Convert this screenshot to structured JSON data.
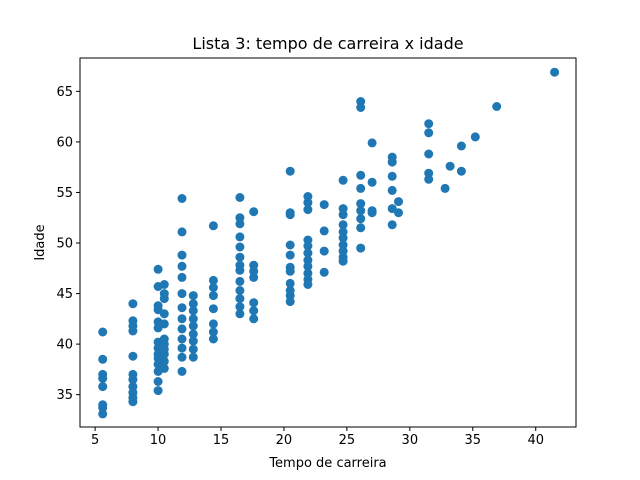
{
  "chart_data": {
    "type": "scatter",
    "title": "Lista 3: tempo de carreira x idade",
    "xlabel": "Tempo de carreira",
    "ylabel": "Idade",
    "xlim": [
      3.8,
      43.2
    ],
    "ylim": [
      31.8,
      68.3
    ],
    "xticks": [
      5,
      10,
      15,
      20,
      25,
      30,
      35,
      40
    ],
    "yticks": [
      35,
      40,
      45,
      50,
      55,
      60,
      65
    ],
    "grid": false,
    "color": "#1f77b4",
    "series": [
      {
        "points": [
          [
            5.6,
            41.2
          ],
          [
            5.6,
            38.5
          ],
          [
            5.6,
            37.0
          ],
          [
            5.6,
            36.6
          ],
          [
            5.6,
            35.8
          ],
          [
            5.6,
            34.0
          ],
          [
            5.6,
            33.7
          ],
          [
            5.6,
            33.1
          ],
          [
            8.0,
            44.0
          ],
          [
            8.0,
            42.3
          ],
          [
            8.0,
            41.8
          ],
          [
            8.0,
            41.3
          ],
          [
            8.0,
            38.8
          ],
          [
            8.0,
            37.0
          ],
          [
            8.0,
            36.5
          ],
          [
            8.0,
            35.8
          ],
          [
            8.0,
            35.2
          ],
          [
            8.0,
            34.7
          ],
          [
            8.0,
            34.3
          ],
          [
            10.0,
            47.4
          ],
          [
            10.0,
            45.7
          ],
          [
            10.0,
            43.8
          ],
          [
            10.0,
            43.4
          ],
          [
            10.0,
            42.2
          ],
          [
            10.0,
            41.6
          ],
          [
            10.0,
            40.2
          ],
          [
            10.0,
            39.6
          ],
          [
            10.0,
            39.0
          ],
          [
            10.0,
            38.6
          ],
          [
            10.0,
            38.0
          ],
          [
            10.0,
            37.3
          ],
          [
            10.0,
            36.3
          ],
          [
            10.0,
            35.4
          ],
          [
            10.5,
            45.9
          ],
          [
            10.5,
            45.0
          ],
          [
            10.5,
            44.5
          ],
          [
            10.5,
            43.0
          ],
          [
            10.5,
            42.0
          ],
          [
            10.5,
            40.5
          ],
          [
            10.5,
            40.0
          ],
          [
            10.5,
            39.5
          ],
          [
            10.5,
            39.0
          ],
          [
            10.5,
            38.3
          ],
          [
            10.5,
            37.6
          ],
          [
            11.9,
            54.4
          ],
          [
            11.9,
            51.1
          ],
          [
            11.9,
            48.8
          ],
          [
            11.9,
            47.7
          ],
          [
            11.9,
            46.6
          ],
          [
            11.9,
            45.0
          ],
          [
            11.9,
            43.6
          ],
          [
            11.9,
            42.5
          ],
          [
            11.9,
            41.5
          ],
          [
            11.9,
            40.5
          ],
          [
            11.9,
            39.6
          ],
          [
            11.9,
            38.7
          ],
          [
            11.9,
            37.3
          ],
          [
            12.8,
            44.8
          ],
          [
            12.8,
            44.0
          ],
          [
            12.8,
            43.3
          ],
          [
            12.8,
            42.5
          ],
          [
            12.8,
            41.8
          ],
          [
            12.8,
            41.0
          ],
          [
            12.8,
            40.3
          ],
          [
            12.8,
            39.5
          ],
          [
            12.8,
            38.7
          ],
          [
            14.4,
            51.7
          ],
          [
            14.4,
            46.3
          ],
          [
            14.4,
            45.6
          ],
          [
            14.4,
            44.8
          ],
          [
            14.4,
            43.5
          ],
          [
            14.4,
            42.0
          ],
          [
            14.4,
            41.2
          ],
          [
            14.4,
            40.5
          ],
          [
            16.5,
            54.5
          ],
          [
            16.5,
            52.5
          ],
          [
            16.5,
            51.9
          ],
          [
            16.5,
            50.6
          ],
          [
            16.5,
            49.6
          ],
          [
            16.5,
            48.6
          ],
          [
            16.5,
            47.8
          ],
          [
            16.5,
            47.3
          ],
          [
            16.5,
            46.2
          ],
          [
            16.5,
            45.3
          ],
          [
            16.5,
            44.5
          ],
          [
            16.5,
            43.7
          ],
          [
            16.5,
            43.0
          ],
          [
            17.6,
            53.1
          ],
          [
            17.6,
            47.8
          ],
          [
            17.6,
            47.2
          ],
          [
            17.6,
            46.6
          ],
          [
            17.6,
            44.1
          ],
          [
            17.6,
            43.3
          ],
          [
            17.6,
            42.5
          ],
          [
            20.5,
            57.1
          ],
          [
            20.5,
            53.0
          ],
          [
            20.5,
            52.8
          ],
          [
            20.5,
            49.8
          ],
          [
            20.5,
            48.8
          ],
          [
            20.5,
            47.6
          ],
          [
            20.5,
            47.2
          ],
          [
            20.5,
            46.0
          ],
          [
            20.5,
            45.3
          ],
          [
            20.5,
            44.8
          ],
          [
            20.5,
            44.2
          ],
          [
            21.9,
            54.6
          ],
          [
            21.9,
            54.0
          ],
          [
            21.9,
            53.3
          ],
          [
            21.9,
            50.3
          ],
          [
            21.9,
            49.7
          ],
          [
            21.9,
            49.0
          ],
          [
            21.9,
            48.3
          ],
          [
            21.9,
            47.7
          ],
          [
            21.9,
            47.0
          ],
          [
            21.9,
            46.4
          ],
          [
            21.9,
            45.9
          ],
          [
            23.2,
            53.8
          ],
          [
            23.2,
            51.2
          ],
          [
            23.2,
            49.2
          ],
          [
            23.2,
            47.1
          ],
          [
            24.7,
            56.2
          ],
          [
            24.7,
            53.4
          ],
          [
            24.7,
            52.8
          ],
          [
            24.7,
            51.8
          ],
          [
            24.7,
            51.1
          ],
          [
            24.7,
            50.5
          ],
          [
            24.7,
            49.8
          ],
          [
            24.7,
            49.2
          ],
          [
            24.7,
            48.6
          ],
          [
            24.7,
            48.2
          ],
          [
            26.1,
            64.0
          ],
          [
            26.1,
            63.4
          ],
          [
            26.1,
            56.7
          ],
          [
            26.1,
            55.4
          ],
          [
            26.1,
            53.9
          ],
          [
            26.1,
            53.2
          ],
          [
            26.1,
            52.4
          ],
          [
            26.1,
            51.5
          ],
          [
            26.1,
            49.5
          ],
          [
            27.0,
            59.9
          ],
          [
            27.0,
            56.0
          ],
          [
            27.0,
            53.2
          ],
          [
            27.0,
            53.0
          ],
          [
            28.6,
            58.5
          ],
          [
            28.6,
            58.0
          ],
          [
            28.6,
            56.6
          ],
          [
            28.6,
            55.2
          ],
          [
            28.6,
            53.4
          ],
          [
            28.6,
            51.8
          ],
          [
            29.1,
            54.1
          ],
          [
            29.1,
            53.0
          ],
          [
            31.5,
            61.8
          ],
          [
            31.5,
            60.9
          ],
          [
            31.5,
            58.8
          ],
          [
            31.5,
            56.9
          ],
          [
            31.5,
            56.3
          ],
          [
            32.8,
            55.4
          ],
          [
            33.2,
            57.6
          ],
          [
            34.1,
            59.6
          ],
          [
            34.1,
            57.1
          ],
          [
            35.2,
            60.5
          ],
          [
            36.9,
            63.5
          ],
          [
            41.5,
            66.9
          ]
        ]
      }
    ]
  }
}
